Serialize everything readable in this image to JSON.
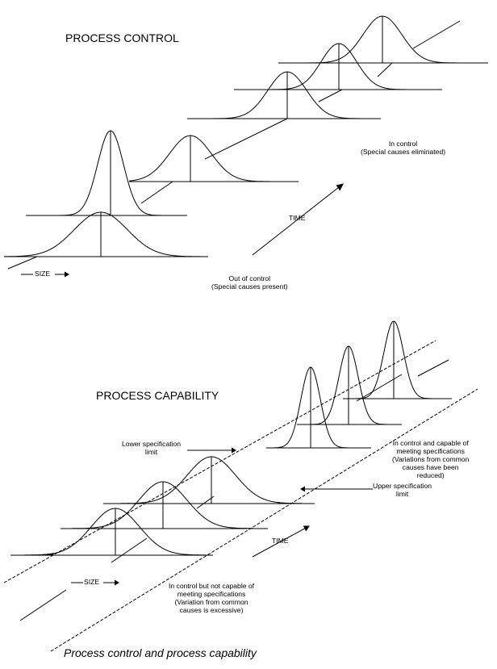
{
  "top": {
    "title": "PROCESS CONTROL",
    "in_control": "In control\n(Special causes eliminated)",
    "time_label": "TIME",
    "size_label": "SIZE",
    "out_of_control": "Out of control\n(Special causes present)"
  },
  "bottom": {
    "title": "PROCESS CAPABILITY",
    "lower_spec": "Lower specification\nlimit",
    "capable": "In control and capable of\nmeeting specifications\n(Variations from common\ncauses have been\nreduced)",
    "upper_spec": "Upper specification\nlimit",
    "time_label": "TIME",
    "size_label": "SIZE",
    "not_capable": "In control but not capable of\nmeeting specifications\n(Variation from common\ncauses is excessive)"
  },
  "caption": "Process control and process capability"
}
